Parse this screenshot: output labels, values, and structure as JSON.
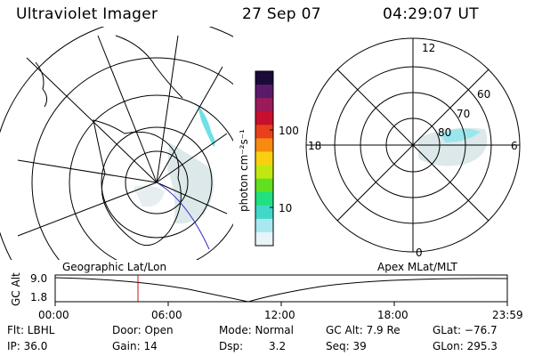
{
  "header": {
    "instrument": "Ultraviolet Imager",
    "date": "27 Sep 07",
    "time": "04:29:07 UT"
  },
  "colorbar": {
    "unit_label": "photon cm⁻²s⁻¹",
    "ticks": [
      "100",
      "10"
    ],
    "colors": [
      "#1a0a3a",
      "#5a1a6a",
      "#9a1a5a",
      "#c8102e",
      "#e8401a",
      "#f88a10",
      "#f8d010",
      "#c0e810",
      "#60e020",
      "#20e080",
      "#40d8c8",
      "#a8e8f0",
      "#e8f4f8"
    ]
  },
  "polar_plot": {
    "mlt_labels": {
      "top": "12",
      "left": "18",
      "right": "6",
      "bottom": "0"
    },
    "lat_labels": [
      "60",
      "70",
      "80"
    ]
  },
  "timeline": {
    "y_axis_title": "GC Alt",
    "left_caption": "Geographic Lat/Lon",
    "right_caption": "Apex MLat/MLT",
    "y_ticks": [
      "9.0",
      "1.8"
    ],
    "x_ticks": [
      "00:00",
      "06:00",
      "12:00",
      "18:00",
      "23:59"
    ]
  },
  "status": {
    "flt": "Flt: LBHL",
    "ip": "IP: 36.0",
    "door": "Door: Open",
    "gain": "Gain: 14",
    "mode": "Mode: Normal",
    "dsp": "Dsp:",
    "dsp_value": "3.2",
    "gc_alt": "GC Alt: 7.9 Re",
    "seq": "Seq: 39",
    "glat": "GLat: −76.7",
    "glon": "GLon: 295.3"
  }
}
